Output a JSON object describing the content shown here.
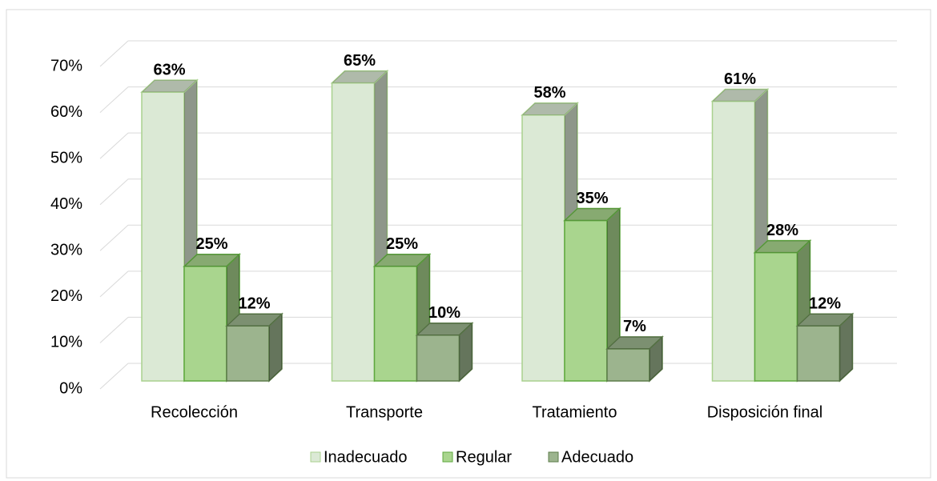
{
  "chart_data": {
    "type": "bar3d",
    "categories": [
      "Recolección",
      "Transporte",
      "Tratamiento",
      "Disposición final"
    ],
    "series": [
      {
        "name": "Inadecuado",
        "color": "#dbe9d5",
        "stroke": "#a9d18e",
        "values": [
          63,
          65,
          58,
          61
        ],
        "value_labels": [
          "63%",
          "65%",
          "58%",
          "61%"
        ]
      },
      {
        "name": "Regular",
        "color": "#a9d58e",
        "stroke": "#5fa83f",
        "values": [
          25,
          25,
          35,
          28
        ],
        "value_labels": [
          "25%",
          "25%",
          "35%",
          "28%"
        ]
      },
      {
        "name": "Adecuado",
        "color": "#9cb48e",
        "stroke": "#5d7d4a",
        "values": [
          12,
          10,
          7,
          12
        ],
        "value_labels": [
          "12%",
          "10%",
          "7%",
          "12%"
        ]
      }
    ],
    "ylim": [
      0,
      70
    ],
    "yticks": [
      {
        "value": 0,
        "label": "0%"
      },
      {
        "value": 10,
        "label": "10%"
      },
      {
        "value": 20,
        "label": "20%"
      },
      {
        "value": 30,
        "label": "30%"
      },
      {
        "value": 40,
        "label": "40%"
      },
      {
        "value": 50,
        "label": "50%"
      },
      {
        "value": 60,
        "label": "60%"
      },
      {
        "value": 70,
        "label": "70%"
      }
    ],
    "grid": true,
    "legend": "bottom"
  }
}
